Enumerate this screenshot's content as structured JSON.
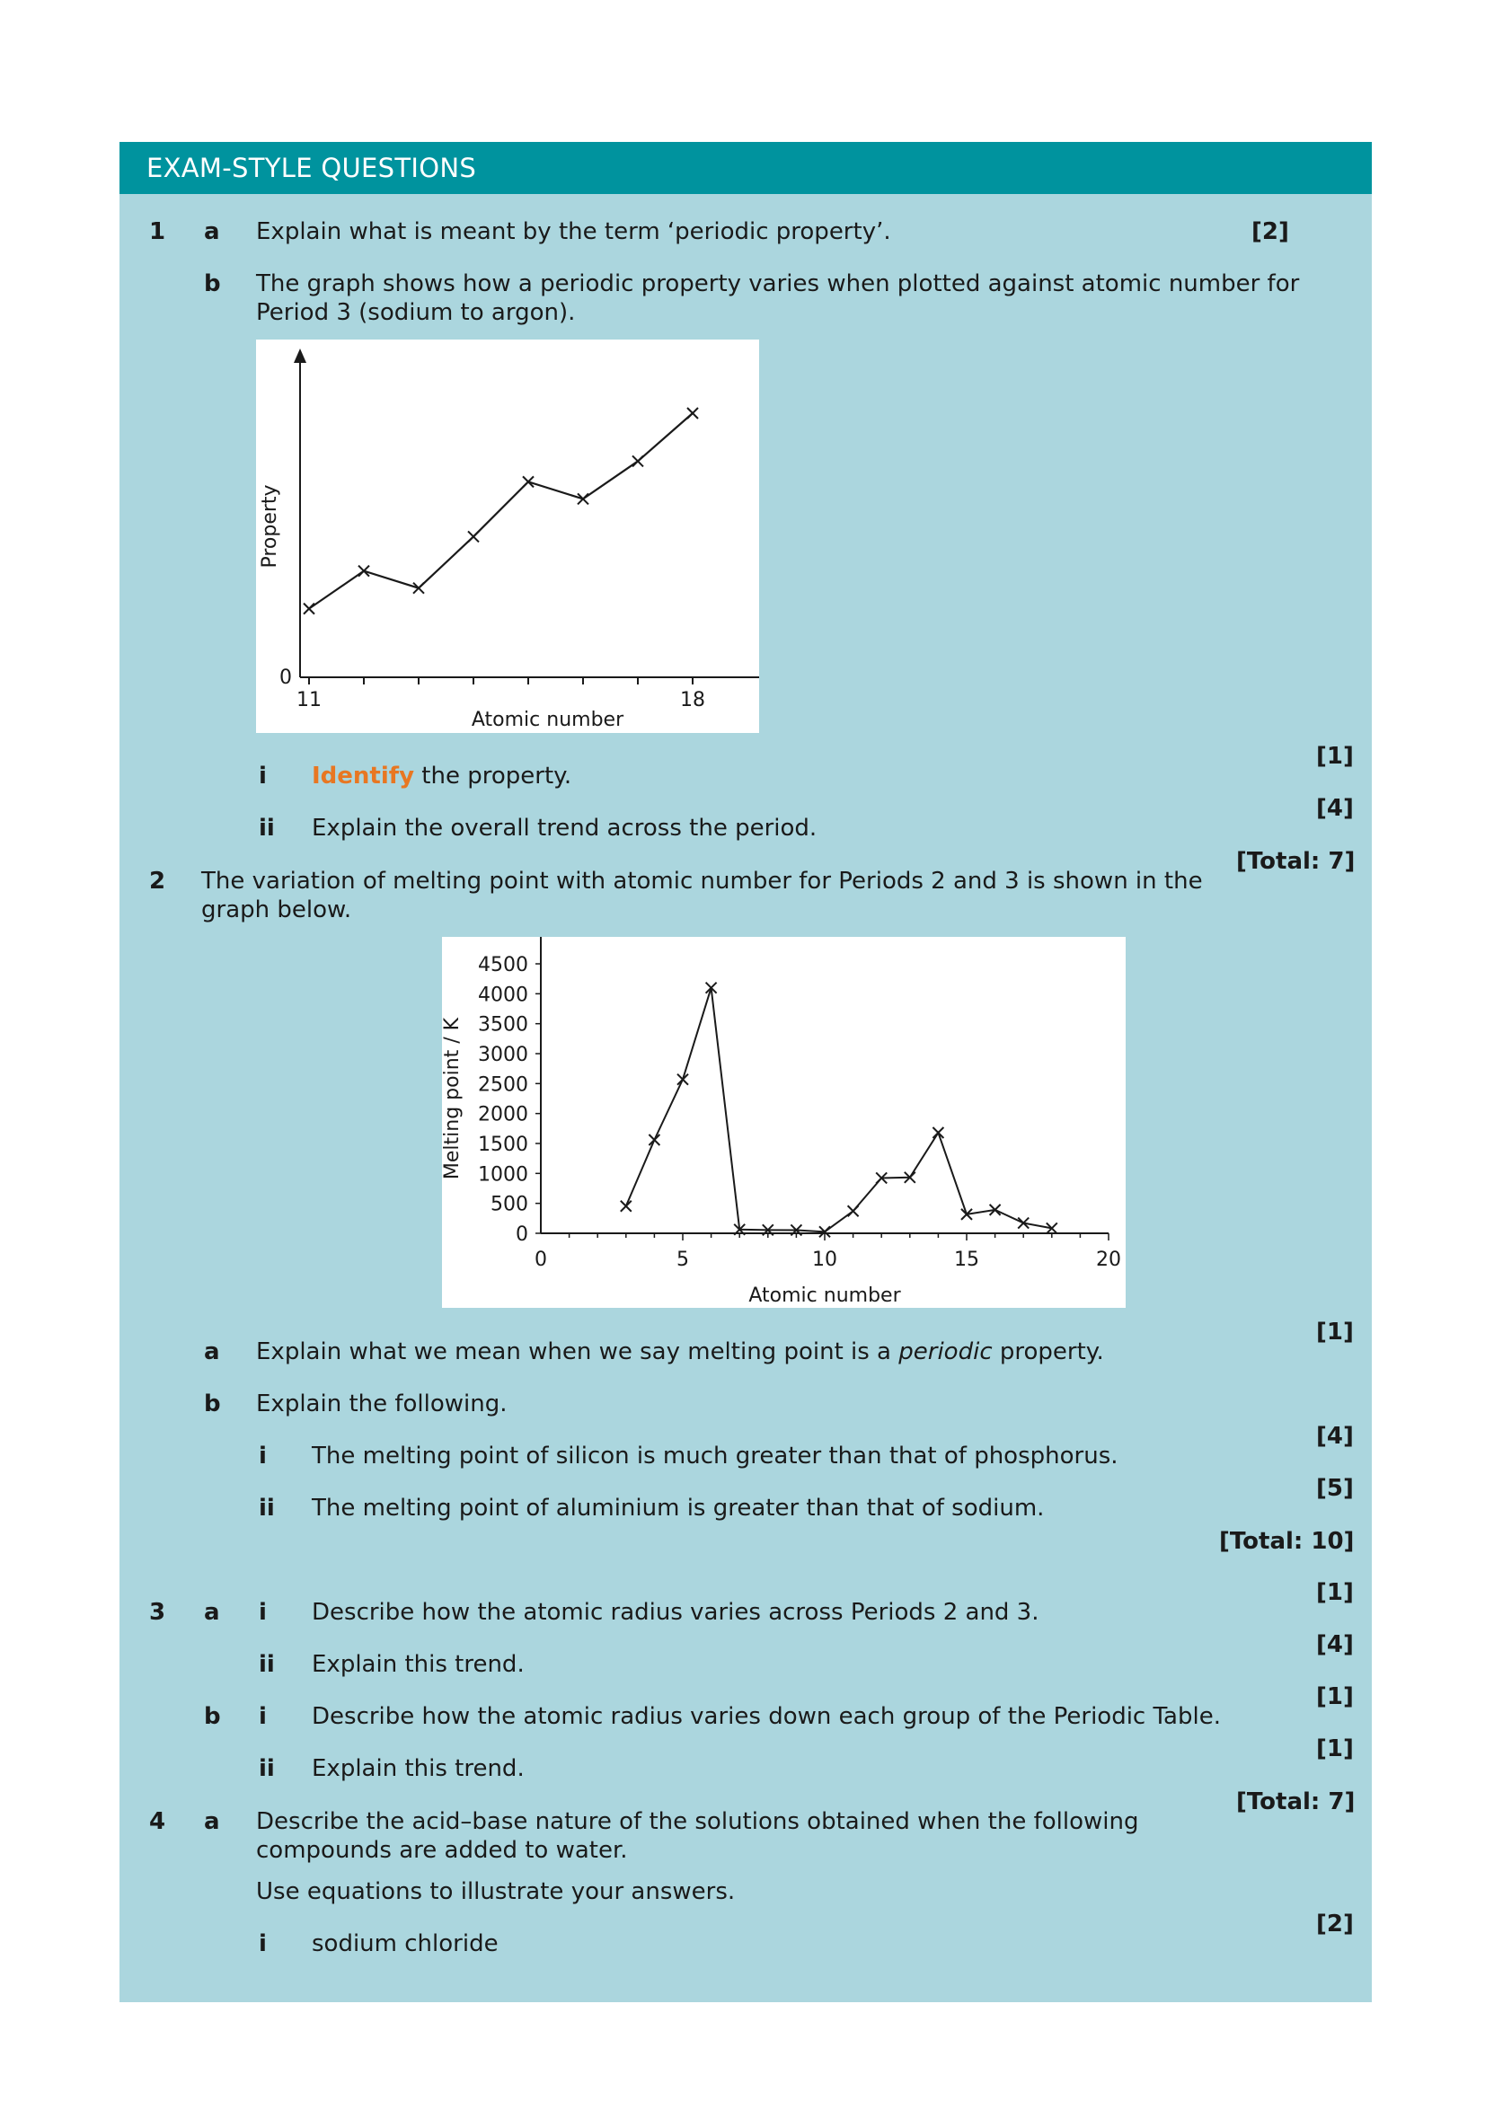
{
  "header": {
    "title": "EXAM-STYLE QUESTIONS"
  },
  "q1": {
    "number": "1",
    "a": {
      "label": "a",
      "text": "Explain what is meant by the term ‘periodic property’.",
      "marks": "[2]"
    },
    "b": {
      "label": "b",
      "text_line1": "The graph shows how a periodic property varies when plotted against atomic number for",
      "text_line2": "Period 3 (sodium to argon).",
      "i": {
        "label": "i",
        "keyword": "Identify",
        "text": " the property.",
        "marks": "[1]"
      },
      "ii": {
        "label": "ii",
        "text": "Explain the overall trend across the period.",
        "marks": "[4]"
      }
    },
    "total": "[Total: 7]"
  },
  "q2": {
    "number": "2",
    "text_line1": "The variation of melting point with atomic number for Periods 2 and 3 is shown in the",
    "text_line2": "graph below.",
    "a": {
      "label": "a",
      "text_before": "Explain what we mean when we say melting point is a ",
      "text_italic": "periodic",
      "text_after": " property.",
      "marks": "[1]"
    },
    "b": {
      "label": "b",
      "text": "Explain the following.",
      "i": {
        "label": "i",
        "text": "The melting point of silicon is much greater than that of phosphorus.",
        "marks": "[4]"
      },
      "ii": {
        "label": "ii",
        "text": "The melting point of aluminium is greater than that of sodium.",
        "marks": "[5]"
      }
    },
    "total": "[Total: 10]"
  },
  "q3": {
    "number": "3",
    "a": {
      "label": "a",
      "i": {
        "label": "i",
        "text": "Describe how the atomic radius varies across Periods 2 and 3.",
        "marks": "[1]"
      },
      "ii": {
        "label": "ii",
        "text": "Explain this trend.",
        "marks": "[4]"
      }
    },
    "b": {
      "label": "b",
      "i": {
        "label": "i",
        "text": "Describe how the atomic radius varies down each group of the Periodic Table.",
        "marks": "[1]"
      },
      "ii": {
        "label": "ii",
        "text": "Explain this trend.",
        "marks": "[1]"
      }
    },
    "total": "[Total: 7]"
  },
  "q4": {
    "number": "4",
    "a": {
      "label": "a",
      "text_line1": "Describe the acid–base nature of the solutions obtained when the following",
      "text_line2": "compounds are added to water.",
      "text_line3": "Use equations to illustrate your answers.",
      "i": {
        "label": "i",
        "text": "sodium chloride",
        "marks": "[2]"
      }
    }
  },
  "chart_data": [
    {
      "type": "line",
      "xlabel": "Atomic number",
      "ylabel": "Property",
      "x_tick_labels": [
        "11",
        "18"
      ],
      "y_tick_labels": [
        "0"
      ],
      "x": [
        11,
        12,
        13,
        14,
        15,
        16,
        17,
        18
      ],
      "y": [
        1.0,
        1.55,
        1.3,
        2.05,
        2.85,
        2.6,
        3.15,
        3.85
      ],
      "xlim": [
        10.2,
        18.7
      ],
      "ylim": [
        0,
        4.4
      ],
      "markers": "x",
      "grid": false
    },
    {
      "type": "line",
      "xlabel": "Atomic number",
      "ylabel": "Melting point / K",
      "x_ticks": [
        0,
        5,
        10,
        15,
        20
      ],
      "y_ticks": [
        0,
        500,
        1000,
        1500,
        2000,
        2500,
        3000,
        3500,
        4000,
        4500
      ],
      "x": [
        3,
        4,
        5,
        6,
        7,
        8,
        9,
        10,
        11,
        12,
        13,
        14,
        15,
        16,
        17,
        18
      ],
      "y": [
        454,
        1560,
        2570,
        4100,
        63,
        55,
        53,
        25,
        371,
        923,
        933,
        1680,
        317,
        392,
        172,
        84
      ],
      "xlim": [
        0,
        20
      ],
      "ylim": [
        0,
        4500
      ],
      "markers": "x",
      "grid": false
    }
  ]
}
